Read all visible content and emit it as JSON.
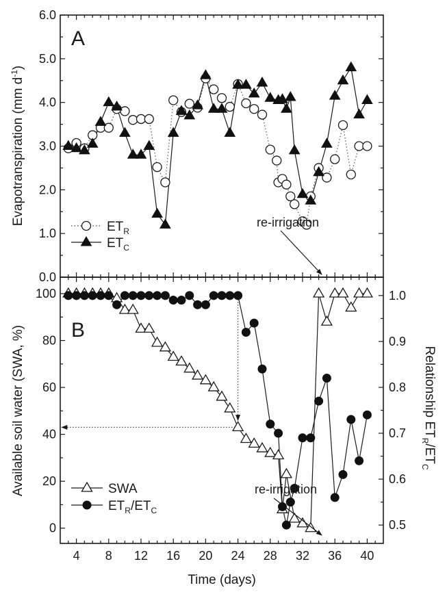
{
  "chart_data": [
    {
      "type": "scatter",
      "panel_letter": "A",
      "ylabel": "Evapotranspiration (mm d",
      "ylabel_sup": "-1",
      "ylabel_close": ")",
      "xlim": [
        2,
        42
      ],
      "ylim": [
        0,
        6
      ],
      "yticks": [
        "0.0",
        "1.0",
        "2.0",
        "3.0",
        "4.0",
        "5.0",
        "6.0"
      ],
      "legend_position": "bottom-left",
      "annotation": "re-irrigation",
      "annotation_arrow_to": {
        "x": 33,
        "y": 0.05
      },
      "series": [
        {
          "legend_main": "ET",
          "legend_sub": "R",
          "marker": "open-circle",
          "line": "dotted",
          "x": [
            3,
            4,
            5,
            6,
            7,
            8,
            9,
            10,
            11,
            12,
            13,
            14,
            15,
            16,
            17,
            18,
            19,
            20,
            21,
            22,
            23,
            24,
            25,
            26,
            27,
            28,
            28.8,
            29,
            29.5,
            30,
            30.5,
            31,
            32,
            32.5,
            33,
            34,
            35,
            36,
            37,
            38,
            39,
            40
          ],
          "y": [
            2.95,
            3.07,
            2.95,
            3.25,
            3.42,
            3.42,
            3.85,
            3.8,
            3.6,
            3.62,
            3.62,
            2.52,
            2.17,
            4.05,
            3.78,
            3.97,
            3.88,
            4.55,
            4.3,
            4.1,
            3.9,
            4.42,
            3.98,
            3.85,
            3.72,
            2.92,
            2.67,
            2.17,
            2.25,
            2.12,
            1.85,
            1.67,
            1.28,
            1.2,
            1.85,
            2.5,
            2.28,
            2.7,
            3.48,
            2.35,
            3.0,
            3.0
          ]
        },
        {
          "legend_main": "ET",
          "legend_sub": "C",
          "marker": "filled-triangle",
          "line": "solid",
          "x": [
            3,
            4,
            5,
            6,
            7,
            8,
            9,
            10,
            11,
            12,
            13,
            14,
            15,
            16,
            17,
            18,
            19,
            20,
            21,
            22,
            23,
            24,
            25,
            26,
            27,
            28,
            29,
            29.5,
            30,
            30.5,
            31,
            32,
            33,
            34,
            35,
            36,
            37,
            38,
            39,
            40
          ],
          "y": [
            3.0,
            2.95,
            2.9,
            3.05,
            3.55,
            4.0,
            3.9,
            3.3,
            2.8,
            2.8,
            3.0,
            1.45,
            1.2,
            3.3,
            3.8,
            3.7,
            3.93,
            4.62,
            3.85,
            3.85,
            3.3,
            4.4,
            4.4,
            4.2,
            4.45,
            4.1,
            4.05,
            4.07,
            3.85,
            4.12,
            2.9,
            1.9,
            1.75,
            2.4,
            3.05,
            4.15,
            4.5,
            4.8,
            3.72,
            4.05
          ]
        }
      ]
    },
    {
      "type": "scatter",
      "panel_letter": "B",
      "ylabel": "Available soil water (SWA, %)",
      "y2label_main": "Relationship ET",
      "y2label_sub1": "R",
      "y2label_mid": "/ET",
      "y2label_sub2": "C",
      "xlabel": "Time (days)",
      "xlim": [
        2,
        42
      ],
      "ylim": [
        -6.5,
        107
      ],
      "y2lim": [
        0.46,
        1.04
      ],
      "xticks": [
        "4",
        "8",
        "12",
        "16",
        "20",
        "24",
        "28",
        "32",
        "36",
        "40"
      ],
      "yticks": [
        "0",
        "20",
        "40",
        "60",
        "80",
        "100"
      ],
      "y2ticks": [
        "0.5",
        "0.6",
        "0.7",
        "0.8",
        "0.9",
        "1.0"
      ],
      "legend_position": "bottom-left",
      "annotation": "re-irrigation",
      "annotation_arrow_to": {
        "x": 33,
        "y": -4
      },
      "reference_lines": [
        {
          "style": "dotted-arrow",
          "from": {
            "x": 24,
            "y": 100
          },
          "to": {
            "x": 24,
            "y": 46
          }
        },
        {
          "style": "dotted-arrow",
          "from": {
            "x": 24,
            "y": 43
          },
          "to": {
            "x": 2.2,
            "y": 43
          }
        }
      ],
      "series": [
        {
          "legend_main": "SWA",
          "legend_sub": "",
          "axis": "left",
          "marker": "open-triangle",
          "line": "solid",
          "x": [
            3,
            4,
            5,
            6,
            7,
            8,
            9,
            10,
            11,
            12,
            13,
            14,
            15,
            16,
            17,
            18,
            19,
            20,
            21,
            22,
            23,
            24,
            25,
            26,
            27,
            28,
            29,
            29.5,
            30,
            31,
            32,
            33,
            34,
            35,
            36,
            37,
            38,
            39,
            40
          ],
          "y": [
            100,
            100,
            100,
            100,
            100,
            100,
            98,
            93,
            93,
            85,
            85,
            79,
            77,
            73,
            71,
            68,
            65,
            63,
            60,
            56,
            51,
            43,
            38,
            36,
            34,
            32,
            31,
            8,
            23,
            4,
            2,
            0,
            100,
            88,
            100,
            100,
            94,
            100,
            100
          ]
        },
        {
          "legend_main": "ET",
          "legend_sub": "R",
          "legend_mid": "/ET",
          "legend_sub2": "C",
          "axis": "right",
          "marker": "filled-circle",
          "line": "solid",
          "x": [
            3,
            4,
            5,
            6,
            7,
            8,
            9,
            10,
            11,
            12,
            13,
            14,
            15,
            16,
            17,
            18,
            19,
            20,
            21,
            22,
            23,
            24,
            25,
            26,
            27,
            28,
            29,
            29.5,
            30,
            30.5,
            31,
            32,
            33,
            34,
            35,
            36,
            37,
            38,
            39,
            40
          ],
          "y": [
            1.0,
            1.0,
            1.0,
            1.0,
            1.0,
            1.0,
            0.98,
            1.0,
            1.0,
            1.0,
            1.0,
            1.0,
            1.0,
            0.99,
            0.99,
            1.0,
            0.98,
            0.98,
            1.0,
            1.0,
            1.0,
            1.0,
            0.92,
            0.94,
            0.84,
            0.72,
            0.7,
            0.54,
            0.5,
            0.55,
            0.58,
            0.69,
            0.69,
            0.77,
            0.82,
            0.56,
            0.61,
            0.73,
            0.64,
            0.74
          ]
        }
      ]
    }
  ]
}
